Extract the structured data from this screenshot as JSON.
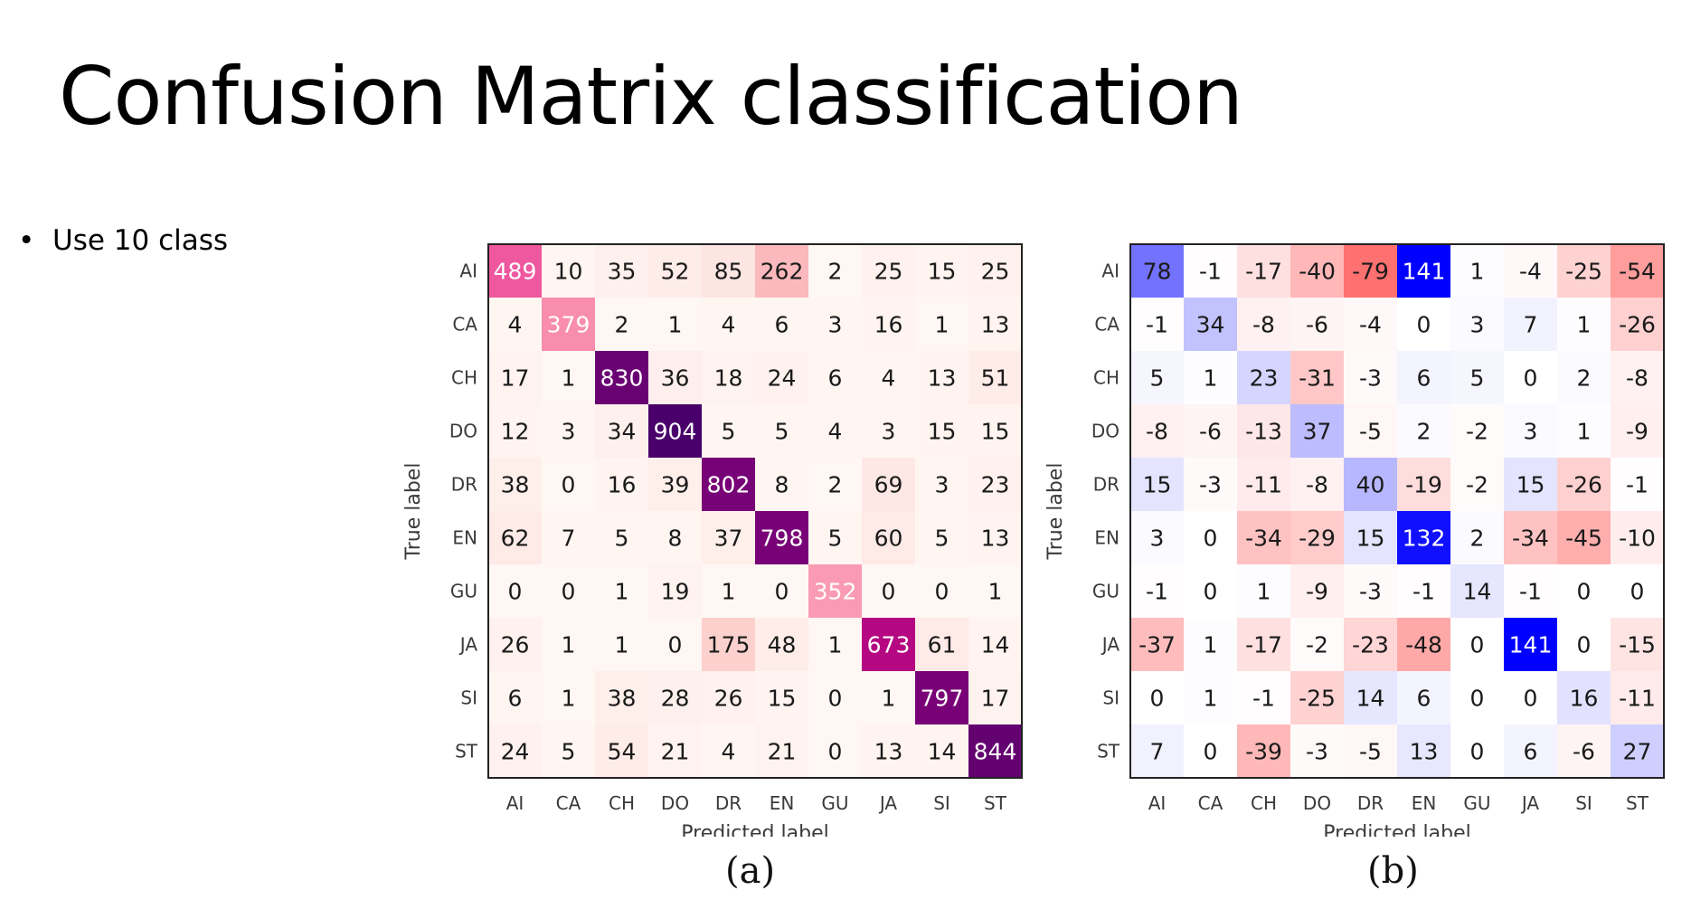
{
  "slide": {
    "title": "Confusion Matrix classification",
    "bullets": [
      "Use 10 class"
    ]
  },
  "chart_data": [
    {
      "type": "heatmap",
      "caption": "(a)",
      "xlabel": "Predicted label",
      "ylabel": "True label",
      "categories": [
        "AI",
        "CA",
        "CH",
        "DO",
        "DR",
        "EN",
        "GU",
        "JA",
        "SI",
        "ST"
      ],
      "colormap": "RdPu",
      "values": [
        [
          489,
          10,
          35,
          52,
          85,
          262,
          2,
          25,
          15,
          25
        ],
        [
          4,
          379,
          2,
          1,
          4,
          6,
          3,
          16,
          1,
          13
        ],
        [
          17,
          1,
          830,
          36,
          18,
          24,
          6,
          4,
          13,
          51
        ],
        [
          12,
          3,
          34,
          904,
          5,
          5,
          4,
          3,
          15,
          15
        ],
        [
          38,
          0,
          16,
          39,
          802,
          8,
          2,
          69,
          3,
          23
        ],
        [
          62,
          7,
          5,
          8,
          37,
          798,
          5,
          60,
          5,
          13
        ],
        [
          0,
          0,
          1,
          19,
          1,
          0,
          352,
          0,
          0,
          1
        ],
        [
          26,
          1,
          1,
          0,
          175,
          48,
          1,
          673,
          61,
          14
        ],
        [
          6,
          1,
          38,
          28,
          26,
          15,
          0,
          1,
          797,
          17
        ],
        [
          24,
          5,
          54,
          21,
          4,
          21,
          0,
          13,
          14,
          844
        ]
      ]
    },
    {
      "type": "heatmap",
      "caption": "(b)",
      "xlabel": "Predicted label",
      "ylabel": "True label",
      "categories": [
        "AI",
        "CA",
        "CH",
        "DO",
        "DR",
        "EN",
        "GU",
        "JA",
        "SI",
        "ST"
      ],
      "colormap": "bwr_r",
      "values": [
        [
          78,
          -1,
          -17,
          -40,
          -79,
          141,
          1,
          -4,
          -25,
          -54
        ],
        [
          -1,
          34,
          -8,
          -6,
          -4,
          0,
          3,
          7,
          1,
          -26
        ],
        [
          5,
          1,
          23,
          -31,
          -3,
          6,
          5,
          0,
          2,
          -8
        ],
        [
          -8,
          -6,
          -13,
          37,
          -5,
          2,
          -2,
          3,
          1,
          -9
        ],
        [
          15,
          -3,
          -11,
          -8,
          40,
          -19,
          -2,
          15,
          -26,
          -1
        ],
        [
          3,
          0,
          -34,
          -29,
          15,
          132,
          2,
          -34,
          -45,
          -10
        ],
        [
          -1,
          0,
          1,
          -9,
          -3,
          -1,
          14,
          -1,
          0,
          0
        ],
        [
          -37,
          1,
          -17,
          -2,
          -23,
          -48,
          0,
          141,
          0,
          -15
        ],
        [
          0,
          1,
          -1,
          -25,
          14,
          6,
          0,
          0,
          16,
          -11
        ],
        [
          7,
          0,
          -39,
          -3,
          -5,
          13,
          0,
          6,
          -6,
          27
        ]
      ]
    }
  ]
}
